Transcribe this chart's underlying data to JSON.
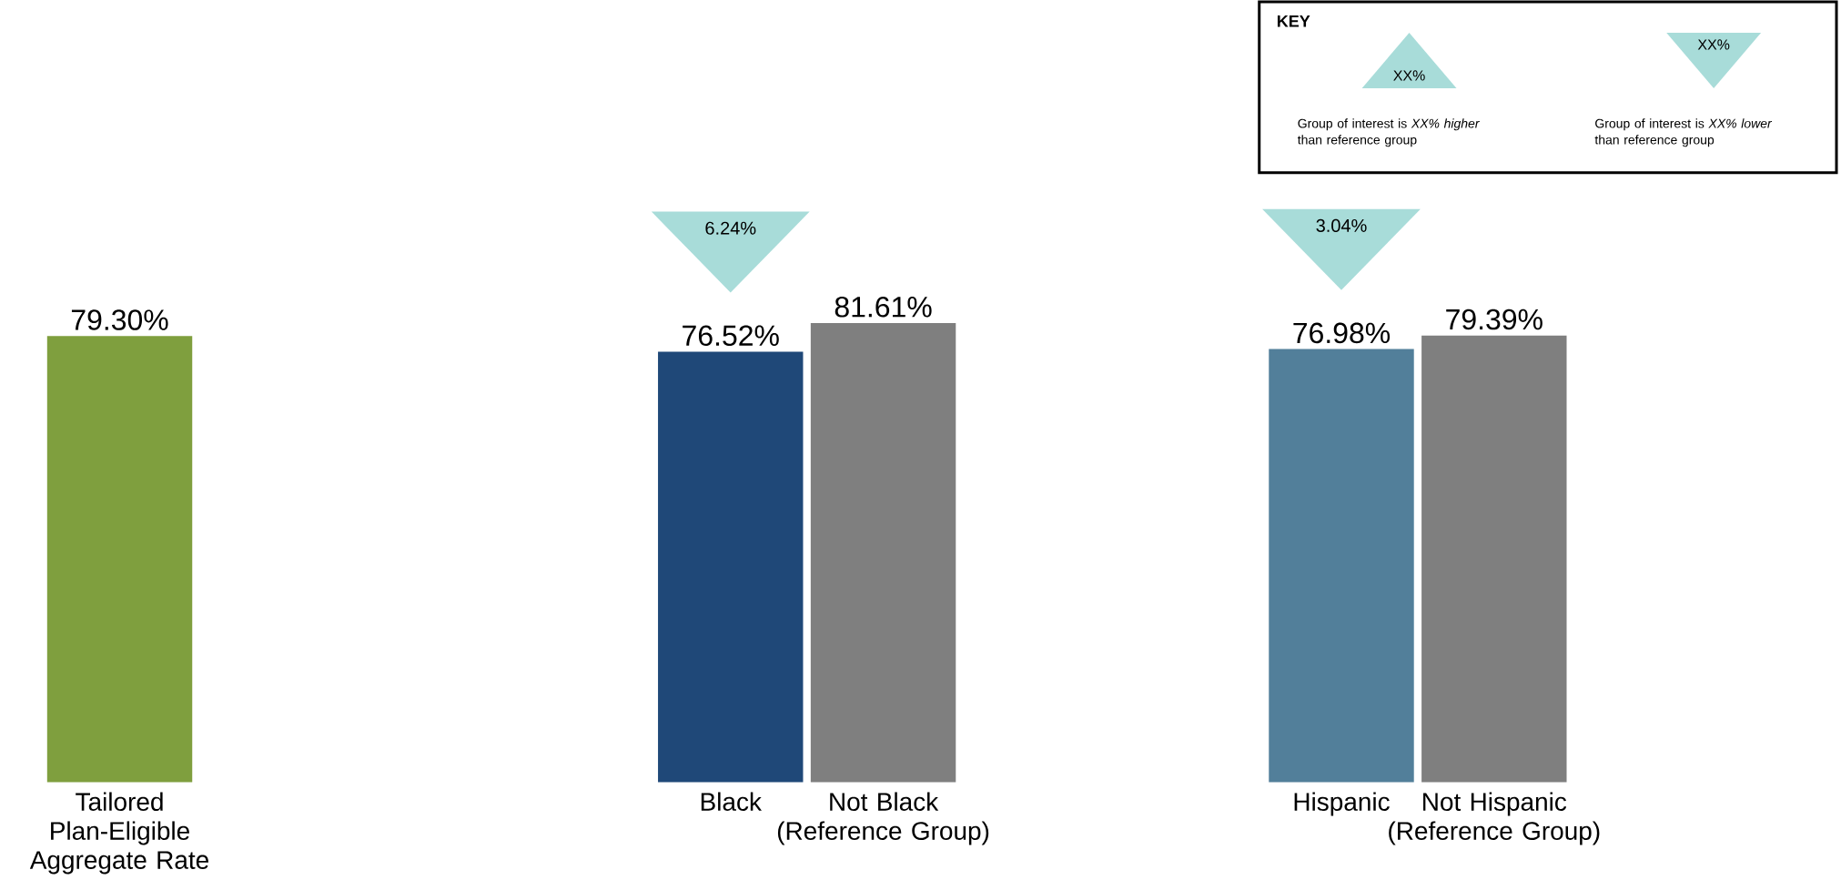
{
  "chart_data": {
    "type": "bar",
    "categories": [
      "Tailored Plan-Eligible Aggregate Rate",
      null,
      null,
      null,
      "Black",
      "Not Black (Reference Group)",
      null,
      null,
      "Hispanic",
      "Not Hispanic (Reference Group)"
    ],
    "values": [
      79.3,
      null,
      null,
      null,
      76.52,
      81.61,
      null,
      null,
      76.98,
      79.39
    ],
    "colors": [
      "#7f9f3e",
      null,
      null,
      null,
      "#1f4878",
      "#7f7f7f",
      null,
      null,
      "#527f9a",
      "#7f7f7f"
    ],
    "value_labels": [
      "79.30%",
      null,
      null,
      null,
      "76.52%",
      "81.61%",
      null,
      null,
      "76.98%",
      "79.39%"
    ],
    "annotations": [
      "6.24%",
      "3.04%",
      "KEY",
      "XX%",
      "XX%",
      "Group of interest is *XX%* *higher* than reference group",
      "Group of interest is *XX%* *lower* than reference group"
    ]
  }
}
